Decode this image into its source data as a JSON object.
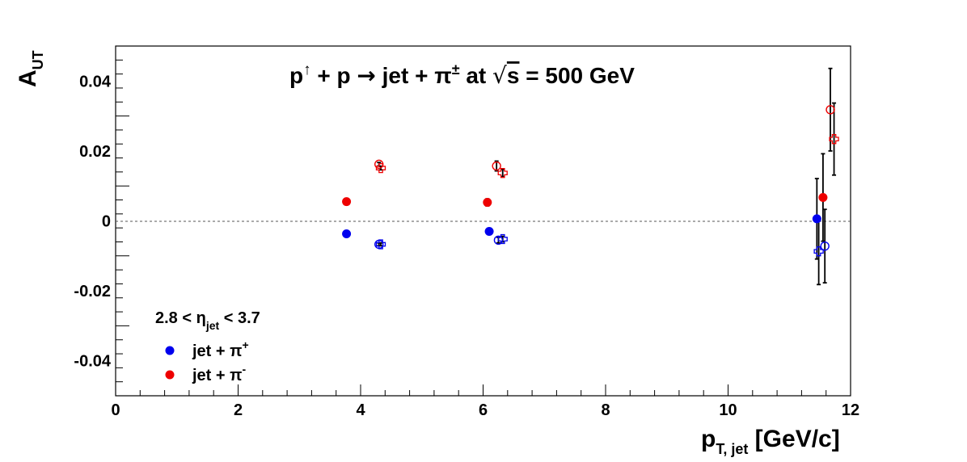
{
  "chart_data": {
    "type": "scatter",
    "title": {
      "lhs_p1": "p",
      "lhs_arrow": "↑",
      "lhs_plus": " + p ",
      "lhs_to": "→",
      "rhs": " jet + π",
      "rhs_sup": "±",
      "at": " at ",
      "sqrt": "√",
      "s": "s",
      "energy": " = 500 GeV"
    },
    "xlabel": {
      "main": "p",
      "sub": "T, jet",
      "unit": " [GeV/c]"
    },
    "ylabel": {
      "main": "A",
      "sub": "UT"
    },
    "xlim": [
      0,
      12
    ],
    "ylim": [
      -0.05,
      0.05
    ],
    "x_ticks": [
      "0",
      "2",
      "4",
      "6",
      "8",
      "10",
      "12"
    ],
    "y_ticks": [
      "0.04",
      "0.02",
      "0",
      "-0.02",
      "-0.04"
    ],
    "zero_line": true,
    "legend": {
      "header": {
        "pre": "2.8 < ",
        "eta": "η",
        "eta_sub": "jet",
        "post": " < 3.7"
      },
      "entries": [
        {
          "text": "jet + π",
          "sup": "+",
          "color": "#0000ee"
        },
        {
          "text": "jet + π",
          "sup": "-",
          "color": "#ee0000"
        }
      ],
      "position": "bottom-left"
    },
    "colors": {
      "pi_plus": "#0000ee",
      "pi_minus": "#ee0000"
    },
    "series": [
      {
        "name": "jet + π+",
        "marker": "filled-circle",
        "color": "#0000ee",
        "points": [
          {
            "x": 3.77,
            "y": -0.0037,
            "err": 0.0005
          },
          {
            "x": 6.1,
            "y": -0.003,
            "err": 0.0008
          },
          {
            "x": 11.45,
            "y": 0.0006,
            "err": 0.0115
          }
        ]
      },
      {
        "marker": "filled-circle",
        "color": "#ee0000",
        "points": [
          {
            "x": 3.77,
            "y": 0.0055,
            "err": 0.0005
          },
          {
            "x": 6.07,
            "y": 0.0053,
            "err": 0.001
          },
          {
            "x": 11.55,
            "y": 0.0067,
            "err": 0.0125
          }
        ]
      },
      {
        "marker": "open-circle",
        "color": "#0000ee",
        "points": [
          {
            "x": 4.3,
            "y": -0.0067,
            "err": 0.0004
          },
          {
            "x": 6.25,
            "y": -0.0055,
            "err": 0.0008
          },
          {
            "x": 11.58,
            "y": -0.0072,
            "err": 0.0105
          }
        ]
      },
      {
        "marker": "open-circle",
        "color": "#ee0000",
        "points": [
          {
            "x": 4.3,
            "y": 0.0162,
            "err": 0.0005
          },
          {
            "x": 6.22,
            "y": 0.0157,
            "err": 0.0014
          },
          {
            "x": 11.67,
            "y": 0.0318,
            "err": 0.0118
          }
        ]
      },
      {
        "marker": "open-cross",
        "color": "#0000ee",
        "points": [
          {
            "x": 4.33,
            "y": -0.0067,
            "err": 0.0004
          },
          {
            "x": 6.32,
            "y": -0.0052,
            "err": 0.0008
          },
          {
            "x": 11.48,
            "y": -0.0087,
            "err": 0.0095
          }
        ]
      },
      {
        "marker": "open-cross",
        "color": "#ee0000",
        "points": [
          {
            "x": 4.33,
            "y": 0.0151,
            "err": 0.0005
          },
          {
            "x": 6.32,
            "y": 0.0137,
            "err": 0.001
          },
          {
            "x": 11.73,
            "y": 0.0234,
            "err": 0.0103
          }
        ]
      }
    ]
  }
}
